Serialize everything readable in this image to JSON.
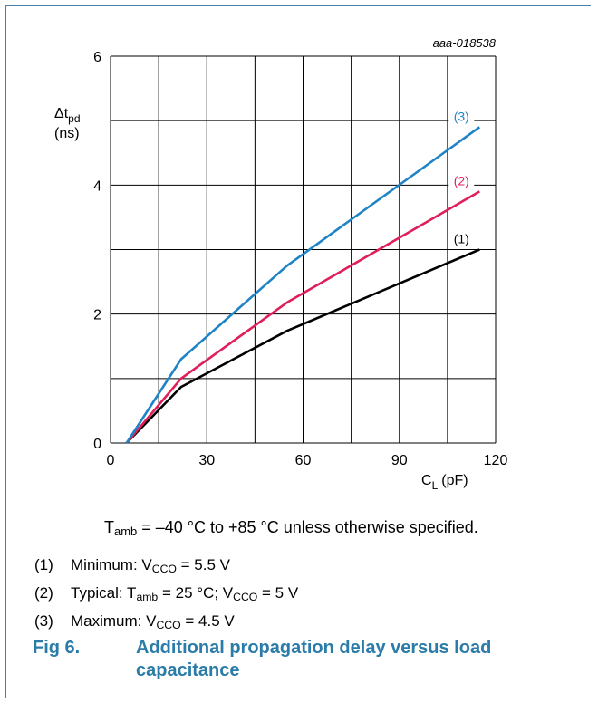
{
  "chart_data": {
    "type": "line",
    "code": "aaa-018538",
    "ylabel_main": "Δt",
    "ylabel_sub": "pd",
    "ylabel_unit": "(ns)",
    "xlabel_main": "C",
    "xlabel_sub": "L",
    "xlabel_unit": "(pF)",
    "xlim": [
      0,
      120
    ],
    "ylim": [
      0,
      6
    ],
    "x_major_ticks": [
      0,
      30,
      60,
      90,
      120
    ],
    "y_major_ticks": [
      0,
      2,
      4,
      6
    ],
    "grid": true,
    "series": [
      {
        "name": "(1)",
        "color": "#000000",
        "label_color": "#000000",
        "points": [
          [
            5,
            0
          ],
          [
            22,
            0.87
          ],
          [
            55,
            1.74
          ],
          [
            115,
            3.0
          ]
        ]
      },
      {
        "name": "(2)",
        "color": "#e01e5a",
        "label_color": "#e01e5a",
        "points": [
          [
            5,
            0
          ],
          [
            22,
            1.0
          ],
          [
            55,
            2.18
          ],
          [
            115,
            3.9
          ]
        ]
      },
      {
        "name": "(3)",
        "color": "#1f84c6",
        "label_color": "#1f84c6",
        "points": [
          [
            5,
            0
          ],
          [
            22,
            1.3
          ],
          [
            55,
            2.75
          ],
          [
            115,
            4.9
          ]
        ]
      }
    ]
  },
  "note": {
    "prefix": "T",
    "sub": "amb",
    "text": " = –40 °C to +85 °C unless otherwise specified."
  },
  "legend": [
    {
      "num": "(1)",
      "parts": [
        [
          "Minimum: V",
          ""
        ],
        [
          "CCO",
          "sub"
        ],
        [
          " = 5.5 V",
          ""
        ]
      ]
    },
    {
      "num": "(2)",
      "parts": [
        [
          "Typical: T",
          ""
        ],
        [
          "amb",
          "sub"
        ],
        [
          " = 25 °C; V",
          ""
        ],
        [
          "CCO",
          "sub"
        ],
        [
          " = 5 V",
          ""
        ]
      ]
    },
    {
      "num": "(3)",
      "parts": [
        [
          "Maximum: V",
          ""
        ],
        [
          "CCO",
          "sub"
        ],
        [
          " = 4.5 V",
          ""
        ]
      ]
    }
  ],
  "figure": {
    "number": "Fig 6.",
    "title": "Additional propagation delay versus load capacitance"
  }
}
